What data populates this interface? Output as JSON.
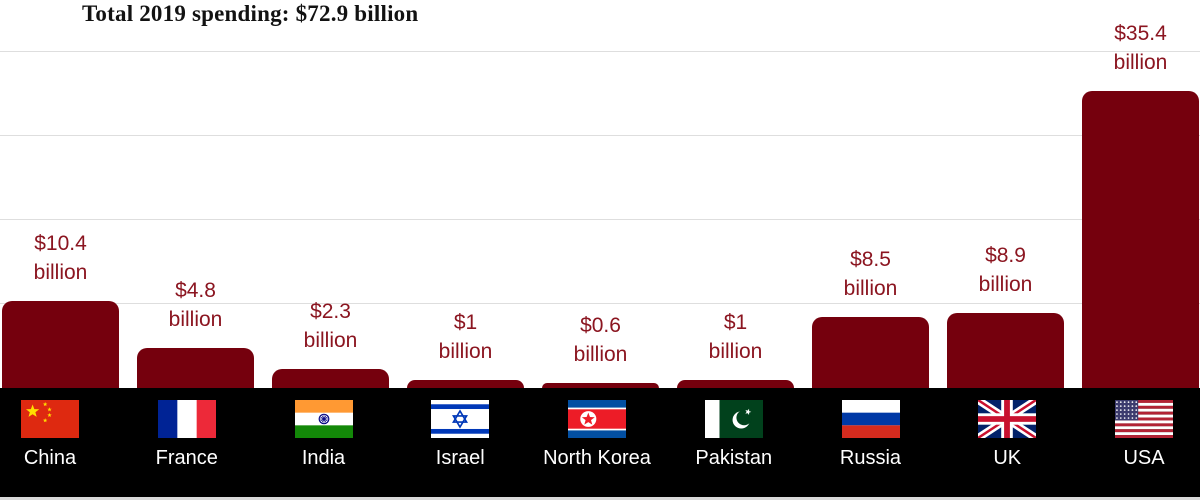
{
  "title": "Total 2019 spending: $72.9 billion",
  "chart_data": {
    "type": "bar",
    "title": "Total 2019 spending: $72.9 billion",
    "categories": [
      "China",
      "France",
      "India",
      "Israel",
      "North Korea",
      "Pakistan",
      "Russia",
      "UK",
      "USA"
    ],
    "values": [
      10.4,
      4.8,
      2.3,
      1,
      0.6,
      1,
      8.5,
      8.9,
      35.4
    ],
    "value_labels": [
      "$10.4",
      "$4.8",
      "$2.3",
      "$1",
      "$0.6",
      "$1",
      "$8.5",
      "$8.9",
      "$35.4"
    ],
    "unit_word": "billion",
    "unit": "USD billions",
    "xlabel": "",
    "ylabel": "",
    "ylim": [
      0,
      40
    ],
    "gridline_values": [
      10,
      20,
      30,
      40
    ],
    "grid": true,
    "legend": false,
    "bar_color": "#75000d",
    "value_label_color": "#8b1520",
    "gridline_color": "#dedede",
    "total_label": "$72.9 billion"
  },
  "footer": {
    "background": "#000000",
    "text_color": "#ffffff",
    "countries": [
      {
        "name": "China",
        "flag": "china"
      },
      {
        "name": "France",
        "flag": "france"
      },
      {
        "name": "India",
        "flag": "india"
      },
      {
        "name": "Israel",
        "flag": "israel"
      },
      {
        "name": "North Korea",
        "flag": "north-korea"
      },
      {
        "name": "Pakistan",
        "flag": "pakistan"
      },
      {
        "name": "Russia",
        "flag": "russia"
      },
      {
        "name": "UK",
        "flag": "uk"
      },
      {
        "name": "USA",
        "flag": "usa"
      }
    ]
  }
}
